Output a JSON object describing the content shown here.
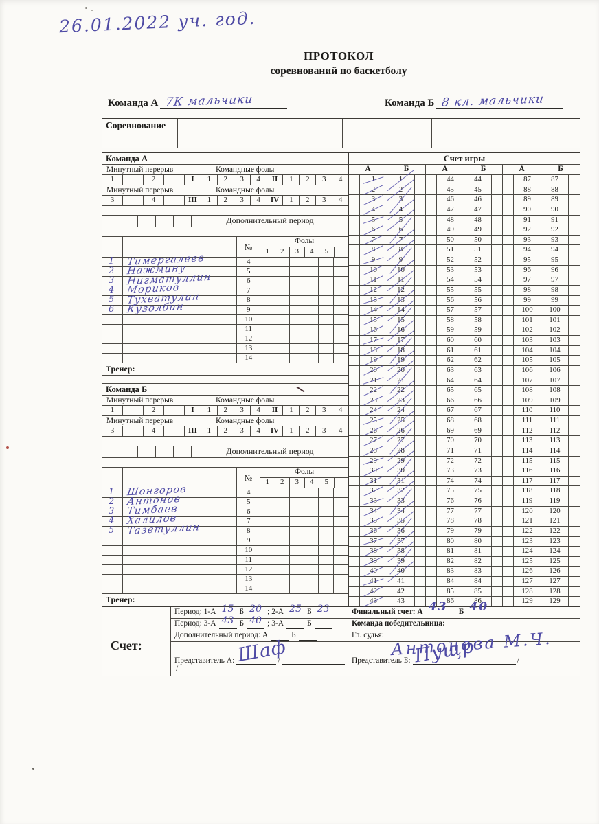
{
  "page": {
    "date_note": "26.01.2022 уч. год.",
    "title_line1": "ПРОТОКОЛ",
    "title_line2": "соревнований по баскетболу"
  },
  "teams_line": {
    "team_a_label": "Команда А",
    "team_a_value": "7К мальчики",
    "team_b_label": "Команда Б",
    "team_b_value": "8 кл. мальчики"
  },
  "competition": {
    "label": "Соревнование"
  },
  "left": {
    "team_a_header": "Команда А",
    "team_b_header": "Команда Б",
    "minute_break_label": "Минутный перерыв",
    "team_fouls_label": "Командные фолы",
    "extra_period_label": "Дополнительный период",
    "fouls_label": "Фолы",
    "number_label": "№",
    "coach_label": "Тренер:",
    "row1_cells": [
      "1",
      "",
      "2",
      "",
      "I",
      "1",
      "2",
      "3",
      "4",
      "II",
      "1",
      "2",
      "3",
      "4"
    ],
    "row2_cells": [
      "3",
      "",
      "4",
      "",
      "III",
      "1",
      "2",
      "3",
      "4",
      "IV",
      "1",
      "2",
      "3",
      "4"
    ],
    "foul_columns": [
      "1",
      "2",
      "3",
      "4",
      "5",
      ""
    ],
    "player_numbers": [
      "4",
      "5",
      "6",
      "7",
      "8",
      "9",
      "10",
      "11",
      "12",
      "13",
      "14"
    ],
    "teams": [
      {
        "players": [
          {
            "o": "1",
            "n": "Тимергалеев"
          },
          {
            "o": "2",
            "n": "Нажмину"
          },
          {
            "o": "3",
            "n": "Нигматуллин"
          },
          {
            "o": "4",
            "n": "Мориков"
          },
          {
            "o": "5",
            "n": "Тухватулин"
          },
          {
            "o": "6",
            "n": "Кузолбин"
          }
        ]
      },
      {
        "players": [
          {
            "o": "1",
            "n": "Шонгоров"
          },
          {
            "o": "2",
            "n": "Антонов"
          },
          {
            "o": "3",
            "n": "Тимбаев"
          },
          {
            "o": "4",
            "n": "Халилов"
          },
          {
            "o": "5",
            "n": "Тазетуллин"
          }
        ]
      }
    ]
  },
  "score_grid": {
    "header": "Счет игры",
    "column_headers": [
      "А",
      "Б",
      "А",
      "Б",
      "А",
      "Б"
    ],
    "rows": 43,
    "group_starts": [
      1,
      44,
      87
    ],
    "crossed_a_max": 43,
    "crossed_b_max": 40,
    "ink_color": "#524da8"
  },
  "bottom": {
    "score_label": "Счет:",
    "period_row1": {
      "l1": "Период: 1-А",
      "v1": "15",
      "l2": "Б",
      "v2": "20",
      "l3": "; 2-А",
      "v3": "25",
      "l4": "Б",
      "v4": "23"
    },
    "period_row2": {
      "l1": "Период: 3-А",
      "v1": "43",
      "l2": "Б",
      "v2": "40",
      "l3": "; 3-А",
      "v3": "",
      "l4": "Б",
      "v4": ""
    },
    "extra_row": {
      "l1": "Дополнительный период: А",
      "v1": "",
      "l2": "Б",
      "v2": ""
    },
    "rep_a_label": "Представитель А:",
    "rep_a_sign": "Шаф",
    "rep_b_label": "Представитель Б:",
    "rep_b_sign": "Пущр",
    "slash": "/",
    "final_label": "Финальный счет: А",
    "final_a": "43",
    "final_b_label": "Б",
    "final_b": "40",
    "winner_label": "Команда победительница:",
    "referee_label": "Гл. судья:",
    "referee_value": "Антонова М.Ч."
  }
}
